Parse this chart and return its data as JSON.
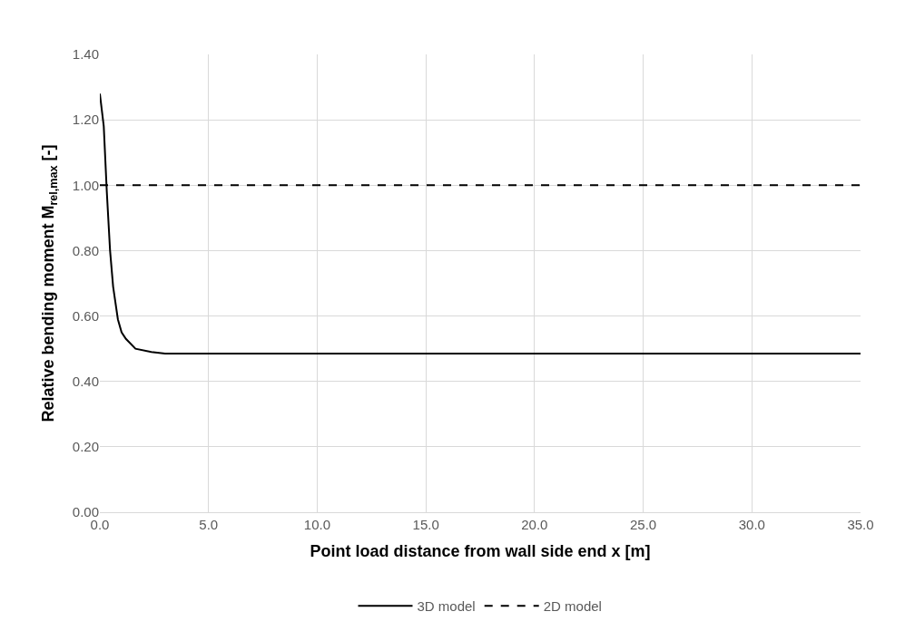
{
  "chart_data": {
    "type": "line",
    "xlabel": "Point load distance from wall side end x [m]",
    "ylabel": "Relative bending moment M$_{rel,max}$ [-]",
    "xlim": [
      0,
      35
    ],
    "xticks": [
      {
        "value": 0,
        "label": "0.0"
      },
      {
        "value": 5,
        "label": "5.0"
      },
      {
        "value": 10,
        "label": "10.0"
      },
      {
        "value": 15,
        "label": "15.0"
      },
      {
        "value": 20,
        "label": "20.0"
      },
      {
        "value": 25,
        "label": "25.0"
      },
      {
        "value": 30,
        "label": "30.0"
      },
      {
        "value": 35,
        "label": "35.0"
      }
    ],
    "ylim": [
      0,
      1.4
    ],
    "yticks": [
      {
        "value": 0,
        "label": "0.00"
      },
      {
        "value": 0.2,
        "label": "0.20"
      },
      {
        "value": 0.4,
        "label": "0.40"
      },
      {
        "value": 0.6,
        "label": "0.60"
      },
      {
        "value": 0.8,
        "label": "0.80"
      },
      {
        "value": 1.0,
        "label": "1.00"
      },
      {
        "value": 1.2,
        "label": "1.20"
      },
      {
        "value": 1.4,
        "label": "1.40"
      }
    ],
    "grid": true,
    "legend": "bottom",
    "marker": "none",
    "series": [
      {
        "name": "3D model",
        "color": "#000000",
        "line_style": "solid",
        "x": [
          0,
          0.18,
          0.32,
          0.47,
          0.61,
          0.83,
          1.0,
          1.2,
          1.64,
          2.37,
          3.0,
          35
        ],
        "values": [
          1.28,
          1.18,
          0.98,
          0.8,
          0.69,
          0.59,
          0.55,
          0.53,
          0.5,
          0.49,
          0.485,
          0.485
        ]
      },
      {
        "name": "2D model",
        "color": "#000000",
        "line_style": "dashed",
        "x": [
          0,
          35
        ],
        "values": [
          1.0,
          1.0
        ]
      }
    ]
  }
}
